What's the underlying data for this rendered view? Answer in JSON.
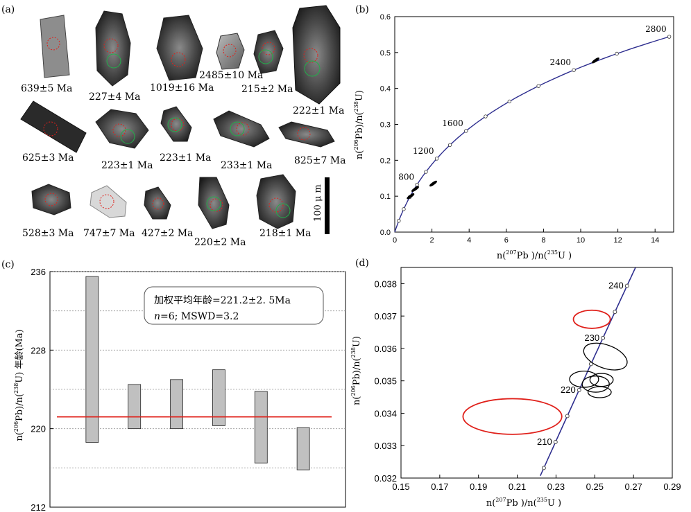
{
  "panel_labels": {
    "a": "(a)",
    "b": "(b)",
    "c": "(c)",
    "d": "(d)"
  },
  "scale_bar": {
    "label": "100 μ m"
  },
  "zircon_ages": [
    "639±5 Ma",
    "227±4 Ma",
    "1019±16 Ma",
    "2485±10 Ma",
    "215±2 Ma",
    "222±1 Ma",
    "625±3 Ma",
    "223±1 Ma",
    "223±1 Ma",
    "233±1 Ma",
    "825±7 Ma",
    "528±3 Ma",
    "747±7 Ma",
    "427±2 Ma",
    "220±2 Ma",
    "218±1 Ma"
  ],
  "chart_data": [
    {
      "panel": "b",
      "type": "scatter",
      "subtype": "concordia",
      "xlabel": "n(207Pb)/n(235U)",
      "ylabel": "n(206Pb)/n(238U)",
      "xlim": [
        0,
        15
      ],
      "ylim": [
        0,
        0.6
      ],
      "xticks": [
        0,
        2,
        4,
        6,
        8,
        10,
        12,
        14
      ],
      "yticks": [
        0,
        0.1,
        0.2,
        0.3,
        0.4,
        0.5,
        0.6
      ],
      "xtick_labels": [
        "0",
        "2",
        "4",
        "6",
        "8",
        "10",
        "12",
        "14"
      ],
      "ytick_labels": [
        "0.0",
        "0.1",
        "0.2",
        "0.3",
        "0.4",
        "0.5",
        "0.6"
      ],
      "concordia_age_labels": [
        {
          "age": 800,
          "label": "800"
        },
        {
          "age": 1200,
          "label": "1200"
        },
        {
          "age": 1600,
          "label": "1600"
        },
        {
          "age": 2400,
          "label": "2400"
        },
        {
          "age": 2800,
          "label": "2800"
        }
      ],
      "analyses": [
        {
          "x": 10.8,
          "y": 0.478
        },
        {
          "x": 2.07,
          "y": 0.135
        },
        {
          "x": 1.1,
          "y": 0.12
        },
        {
          "x": 0.85,
          "y": 0.1
        }
      ]
    },
    {
      "panel": "c",
      "type": "bar",
      "subtype": "weighted-mean",
      "ylabel": "n(206Pb)/n(238U) 年龄(Ma)",
      "ylim": [
        212,
        236
      ],
      "yticks": [
        212,
        220,
        228,
        236
      ],
      "ytick_labels": [
        "212",
        "220",
        "228",
        "236"
      ],
      "bars": [
        {
          "low": 218.6,
          "high": 235.5
        },
        {
          "low": 220.0,
          "high": 224.5
        },
        {
          "low": 220.0,
          "high": 225.0
        },
        {
          "low": 220.3,
          "high": 226.0
        },
        {
          "low": 216.5,
          "high": 223.8
        },
        {
          "low": 215.8,
          "high": 220.1
        }
      ],
      "mean": 221.2,
      "annotation_line1": "加权平均年龄=221.2±2. 5Ma",
      "annotation_n": "n",
      "annotation_line2": "=6;  MSWD=3.2"
    },
    {
      "panel": "d",
      "type": "scatter",
      "subtype": "concordia",
      "xlabel": "n(207Pb)/n(235U)",
      "ylabel": "n(206Pb)/n(238U)",
      "xlim": [
        0.15,
        0.29
      ],
      "ylim": [
        0.032,
        0.0385
      ],
      "xticks": [
        0.15,
        0.17,
        0.19,
        0.21,
        0.23,
        0.25,
        0.27,
        0.29
      ],
      "yticks": [
        0.032,
        0.033,
        0.034,
        0.035,
        0.036,
        0.037,
        0.038
      ],
      "xtick_labels": [
        "0.15",
        "0.17",
        "0.19",
        "0.21",
        "0.23",
        "0.25",
        "0.27",
        "0.29"
      ],
      "ytick_labels": [
        "0.032",
        "0.033",
        "0.034",
        "0.035",
        "0.036",
        "0.037",
        "0.038"
      ],
      "concordia_age_labels": [
        {
          "age": 210,
          "label": "210"
        },
        {
          "age": 220,
          "label": "220"
        },
        {
          "age": 230,
          "label": "230"
        },
        {
          "age": 240,
          "label": "240"
        }
      ],
      "ellipses_black": [
        {
          "x": 0.2555,
          "y": 0.03575,
          "rx": 0.006,
          "ry": 0.0007
        },
        {
          "x": 0.2445,
          "y": 0.03505,
          "rx": 0.0075,
          "ry": 0.00025
        },
        {
          "x": 0.2505,
          "y": 0.0349,
          "rx": 0.007,
          "ry": 0.00025
        },
        {
          "x": 0.2535,
          "y": 0.03503,
          "rx": 0.006,
          "ry": 0.0002
        },
        {
          "x": 0.2525,
          "y": 0.03465,
          "rx": 0.006,
          "ry": 0.00017
        }
      ],
      "ellipses_red": [
        {
          "x": 0.2075,
          "y": 0.0339,
          "rx": 0.0255,
          "ry": 0.00055
        },
        {
          "x": 0.2485,
          "y": 0.0369,
          "rx": 0.0095,
          "ry": 0.00028
        }
      ]
    }
  ],
  "colors": {
    "concordia": "#2e2e8f",
    "red": "#e0201a",
    "bar": "#c0c0c0"
  }
}
